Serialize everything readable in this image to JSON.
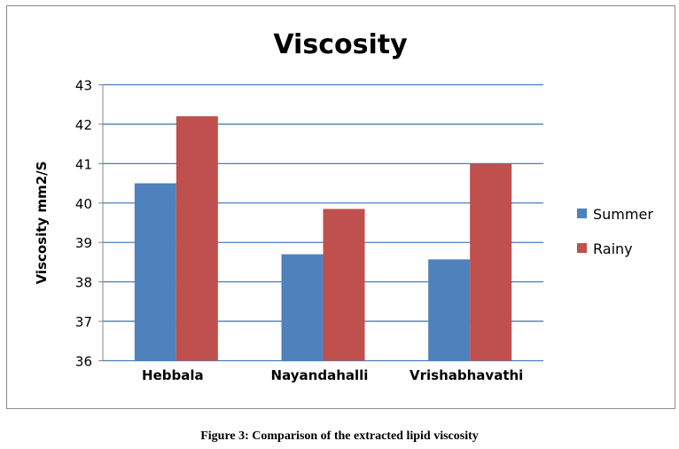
{
  "chart_data": {
    "type": "bar",
    "title": "Viscosity",
    "xlabel": "",
    "ylabel": "Viscosity mm2/S",
    "categories": [
      "Hebbala",
      "Nayandahalli",
      "Vrishabhavathi"
    ],
    "series": [
      {
        "name": "Summer",
        "color": "#4f81bd",
        "values": [
          40.5,
          38.7,
          38.57
        ]
      },
      {
        "name": "Rainy",
        "color": "#c0504d",
        "values": [
          42.2,
          39.85,
          41.0
        ]
      }
    ],
    "ylim": [
      36,
      43
    ],
    "yticks": [
      "36",
      "37",
      "38",
      "39",
      "40",
      "41",
      "42",
      "43"
    ],
    "grid": true,
    "legend_position": "right"
  },
  "caption": "Figure 3: Comparison of the extracted lipid viscosity"
}
